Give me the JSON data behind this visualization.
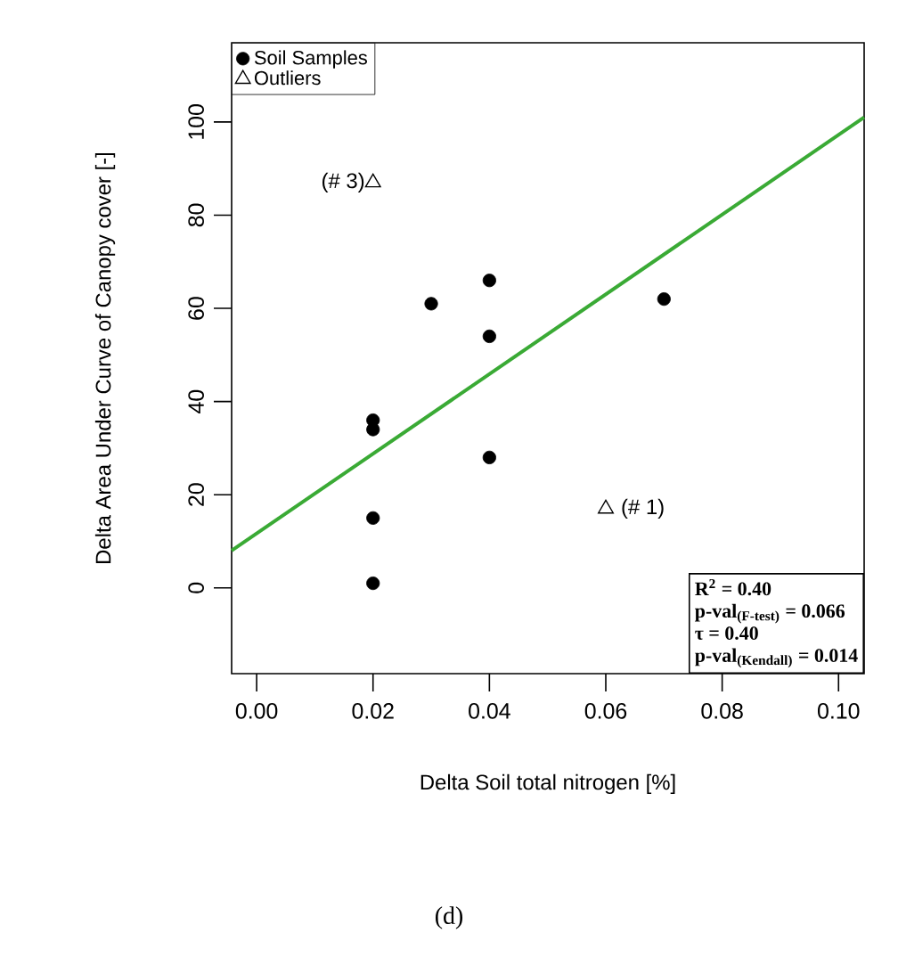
{
  "chart_data": {
    "type": "scatter",
    "xlabel": "Delta Soil total nitrogen [%]",
    "ylabel": "Delta Area Under Curve of Canopy cover [-]",
    "xlim": [
      -0.0043,
      0.1044
    ],
    "ylim": [
      -18.4,
      117
    ],
    "xticks": [
      {
        "value": 0,
        "label": "0.00"
      },
      {
        "value": 0.02,
        "label": "0.02"
      },
      {
        "value": 0.04,
        "label": "0.04"
      },
      {
        "value": 0.06,
        "label": "0.06"
      },
      {
        "value": 0.08,
        "label": "0.08"
      },
      {
        "value": 0.1,
        "label": "0.10"
      }
    ],
    "yticks": [
      0,
      20,
      40,
      60,
      80,
      100
    ],
    "grid": false,
    "legend": "top left",
    "series": [
      {
        "name": "Soil Samples",
        "marker": "circle",
        "color": "#000000",
        "x": [
          0.04,
          0.03,
          0.04,
          0.07,
          0.02,
          0.02,
          0.04,
          0.02,
          0.02
        ],
        "values": [
          66,
          61,
          54,
          62,
          36,
          34,
          28,
          15,
          1
        ]
      },
      {
        "name": "Outliers",
        "marker": "triangle",
        "color": "#000000",
        "x": [
          0.06,
          0.02
        ],
        "values": [
          17,
          87
        ]
      },
      {
        "type": "line",
        "color": "#3aaa35",
        "x": [
          -0.0043,
          0.1044
        ],
        "values": [
          8,
          101
        ]
      }
    ],
    "annotations": [
      {
        "text": "(# 3)",
        "x": 0.02,
        "y": 87
      },
      {
        "text": "(# 1)",
        "x": 0.06,
        "y": 17
      },
      "R$^{2}$ = 0.40",
      "p-val$_{(F-test)}$ = 0.066",
      "τ = 0.40",
      "p-val$_{(Kendall)}$ = 0.014",
      "(d)"
    ]
  }
}
